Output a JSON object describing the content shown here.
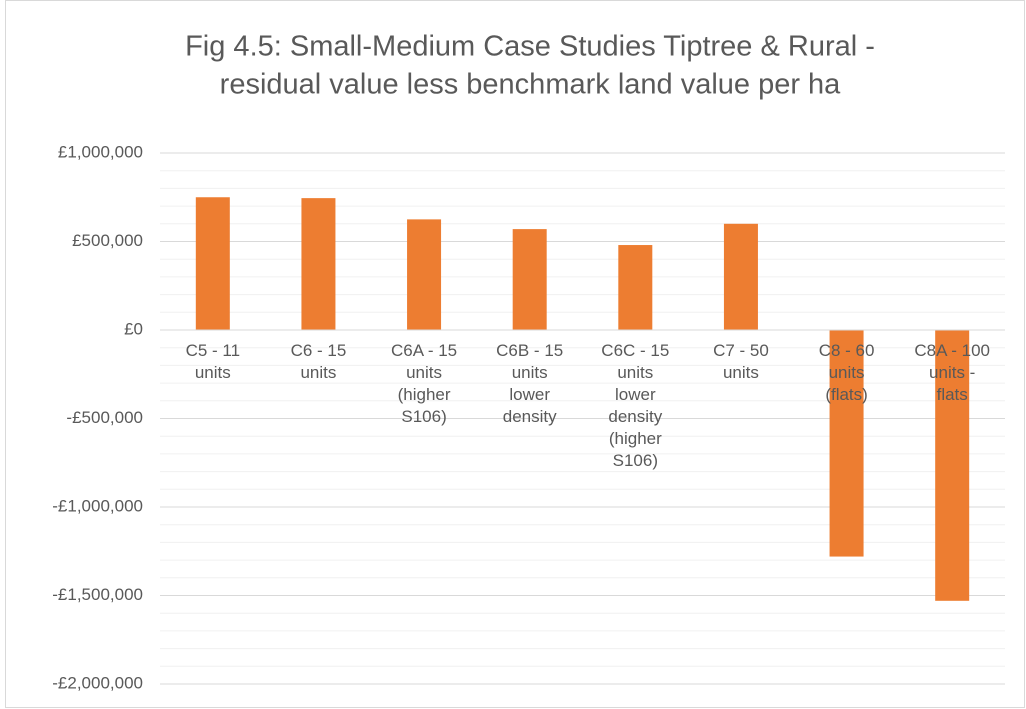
{
  "chart_data": {
    "type": "bar",
    "title": [
      "Fig 4.5: Small-Medium Case Studies Tiptree & Rural -",
      "residual value less benchmark land value per ha"
    ],
    "categories": [
      "C5 - 11 units",
      "C6 - 15 units",
      "C6A - 15 units (higher S106)",
      "C6B - 15 units lower density",
      "C6C - 15 units lower density (higher S106)",
      "C7 - 50 units",
      "C8 - 60 units (flats)",
      "C8A - 100 units - flats"
    ],
    "values": [
      750000,
      745000,
      625000,
      570000,
      480000,
      600000,
      -1280000,
      -1530000
    ],
    "color": "#ed7d31",
    "ylim": [
      -2000000,
      1000000
    ],
    "yticks": [
      {
        "value": -2000000,
        "label": "-£2,000,000"
      },
      {
        "value": -1500000,
        "label": "-£1,500,000"
      },
      {
        "value": -1000000,
        "label": "-£1,000,000"
      },
      {
        "value": -500000,
        "label": "-£500,000"
      },
      {
        "value": 0,
        "label": "£0"
      },
      {
        "value": 500000,
        "label": "£500,000"
      },
      {
        "value": 1000000,
        "label": "£1,000,000"
      }
    ],
    "grid": true,
    "minor_grid": true
  }
}
